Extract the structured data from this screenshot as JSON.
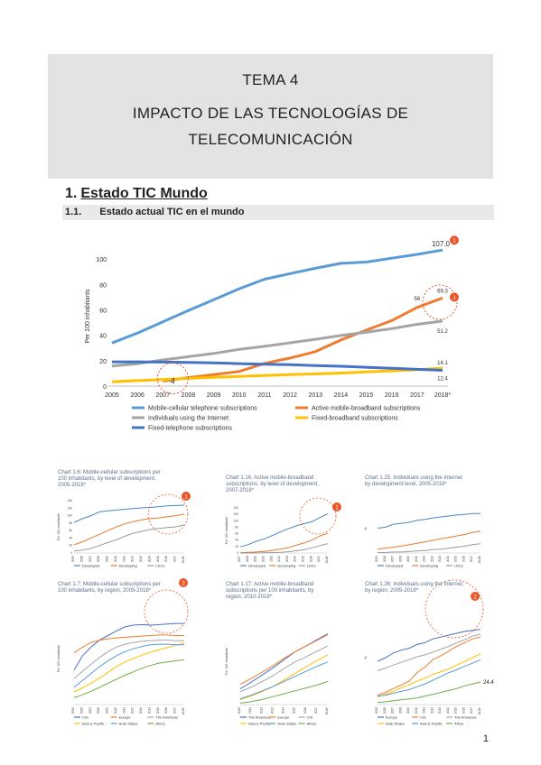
{
  "header": {
    "line1": "TEMA 4",
    "line2": "IMPACTO DE LAS TECNOLOGÍAS DE",
    "line3": "TELECOMUNICACIÓN"
  },
  "section": {
    "number": "1.",
    "title": "Estado TIC Mundo"
  },
  "subsection": {
    "number": "1.1.",
    "title": "Estado actual TIC en el mundo"
  },
  "page_number": "1",
  "colors": {
    "mobile": "#5b9bd5",
    "broadband": "#ed7d31",
    "internet": "#a5a5a5",
    "fixed_bb": "#ffc000",
    "fixed_tel": "#4472c4",
    "circle": "#e8572a"
  },
  "chart_data": [
    {
      "type": "line",
      "title": "",
      "ylabel": "Per 100 inhabitants",
      "xlabel": "",
      "ylim": [
        0,
        110
      ],
      "yticks": [
        "0",
        "20",
        "40",
        "60",
        "80",
        "100"
      ],
      "categories": [
        "2005",
        "2006",
        "2007",
        "2008",
        "2009",
        "2010",
        "2011",
        "2012",
        "2013",
        "2014",
        "2015",
        "2016",
        "2017",
        "2018*"
      ],
      "series": [
        {
          "name": "Mobile-cellular telephone subscriptions",
          "color": "#5b9bd5",
          "values": [
            33.9,
            41.7,
            50.6,
            59.4,
            67.9,
            76.6,
            84.1,
            88.5,
            92.7,
            96.6,
            97.6,
            100.6,
            103.6,
            107.0
          ]
        },
        {
          "name": "Active mobile-broadband subscriptions",
          "color": "#ed7d31",
          "values": [
            null,
            null,
            4.0,
            6.7,
            9.1,
            11.5,
            17.9,
            22.1,
            27.1,
            36.3,
            44.0,
            51.5,
            61.9,
            69.3
          ]
        },
        {
          "name": "Individuals using the Internet",
          "color": "#a5a5a5",
          "values": [
            15.8,
            17.6,
            20.6,
            23.1,
            25.7,
            28.9,
            31.3,
            34.1,
            36.8,
            39.8,
            42.4,
            45.2,
            48.6,
            51.2
          ]
        },
        {
          "name": "Fixed-broadband subscriptions",
          "color": "#ffc000",
          "values": [
            3.4,
            4.3,
            5.2,
            6.1,
            6.9,
            7.6,
            8.4,
            9.0,
            9.6,
            10.3,
            11.2,
            12.0,
            13.0,
            14.1
          ]
        },
        {
          "name": "Fixed-telephone subscriptions",
          "color": "#4472c4",
          "values": [
            19.1,
            19.1,
            18.9,
            18.6,
            18.3,
            17.7,
            17.2,
            16.8,
            16.1,
            15.6,
            14.8,
            14.0,
            13.2,
            12.4
          ]
        }
      ],
      "data_labels": [
        "107.0",
        "69.3",
        "56",
        "51.2",
        "14.1",
        "12.4",
        "4"
      ],
      "annotations": [
        "1",
        "1"
      ],
      "legend_position": "bottom"
    },
    {
      "type": "line",
      "title": "Chart 1.6: Mobile-cellular subscriptions per 100 inhabitants, by level of development, 2005-2018*",
      "ylabel": "Per 100 inhabitants",
      "yticks": [
        "0",
        "20",
        "40",
        "60",
        "80",
        "100",
        "120",
        "140"
      ],
      "categories": [
        "2005",
        "2006",
        "2007",
        "2008",
        "2009",
        "2010",
        "2011",
        "2012",
        "2013",
        "2014",
        "2015",
        "2016",
        "2017",
        "2018*"
      ],
      "series": [
        {
          "name": "Developed",
          "values": [
            82,
            92,
            100,
            110,
            113,
            115,
            117,
            119,
            121,
            122,
            124,
            126,
            127,
            128
          ]
        },
        {
          "name": "Developing",
          "values": [
            22,
            30,
            40,
            50,
            60,
            70,
            78,
            84,
            89,
            92,
            94,
            97,
            100,
            104
          ]
        },
        {
          "name": "LDCs",
          "values": [
            5,
            8,
            12,
            20,
            28,
            35,
            45,
            53,
            58,
            63,
            66,
            68,
            70,
            75
          ]
        }
      ],
      "annotation": "1"
    },
    {
      "type": "line",
      "title": "Chart 1.16: Active mobile-broadband subscriptions, by level of development, 2007-2018*",
      "ylabel": "Per 100 inhabitants",
      "yticks": [
        "0",
        "20",
        "40",
        "60",
        "80",
        "100",
        "120",
        "140"
      ],
      "categories": [
        "2007",
        "2008",
        "2009",
        "2010",
        "2011",
        "2012",
        "2013",
        "2014",
        "2015",
        "2016",
        "2017",
        "2018*"
      ],
      "series": [
        {
          "name": "Developed",
          "values": [
            19,
            26,
            36,
            44,
            54,
            65,
            75,
            84,
            91,
            97,
            110,
            122
          ]
        },
        {
          "name": "Developing",
          "values": [
            1,
            2,
            3,
            5,
            8,
            12,
            16,
            24,
            31,
            40,
            53,
            61
          ]
        },
        {
          "name": "LDCs",
          "values": [
            0,
            0,
            0,
            1,
            1,
            2,
            4,
            7,
            10,
            16,
            23,
            29
          ]
        }
      ],
      "annotation": "1"
    },
    {
      "type": "line",
      "title": "Chart 1.25: Individuals using the Internet by development level, 2005-2018*",
      "ylabel": "%",
      "categories": [
        "2005",
        "2006",
        "2007",
        "2008",
        "2009",
        "2010",
        "2011",
        "2012",
        "2013",
        "2014",
        "2015",
        "2016",
        "2017",
        "2018*"
      ],
      "series": [
        {
          "name": "Developed",
          "values": [
            51,
            53,
            59,
            61,
            63,
            67,
            69,
            72,
            74,
            76,
            78,
            79,
            81,
            81
          ]
        },
        {
          "name": "Developing",
          "values": [
            8,
            10,
            12,
            14,
            17,
            20,
            23,
            26,
            29,
            32,
            35,
            38,
            42,
            45
          ]
        },
        {
          "name": "LDCs",
          "values": [
            1,
            1,
            2,
            2,
            3,
            4,
            5,
            7,
            8,
            10,
            12,
            14,
            17,
            19
          ]
        }
      ]
    },
    {
      "type": "line",
      "title": "Chart 1.7: Mobile-cellular subscriptions per 100 inhabitants, by region, 2005-2018*",
      "ylabel": "Per 100 inhabitants",
      "categories": [
        "2005",
        "2006",
        "2007",
        "2008",
        "2009",
        "2010",
        "2011",
        "2012",
        "2013",
        "2014",
        "2015",
        "2016",
        "2017",
        "2018*"
      ],
      "series": [
        {
          "name": "CIS",
          "values": [
            60,
            85,
            100,
            112,
            120,
            128,
            135,
            138,
            139,
            138,
            139,
            140,
            141,
            141
          ]
        },
        {
          "name": "Europe",
          "values": [
            90,
            100,
            108,
            112,
            114,
            116,
            117,
            118,
            119,
            120,
            121,
            121,
            120,
            120
          ]
        },
        {
          "name": "The Americas",
          "values": [
            45,
            58,
            70,
            82,
            92,
            100,
            105,
            108,
            110,
            111,
            112,
            112,
            111,
            111
          ]
        },
        {
          "name": "Asia & Pacific",
          "values": [
            22,
            29,
            37,
            46,
            56,
            66,
            74,
            80,
            86,
            91,
            95,
            99,
            103,
            107
          ]
        },
        {
          "name": "Arab States",
          "values": [
            30,
            42,
            54,
            66,
            76,
            85,
            92,
            97,
            101,
            104,
            105,
            105,
            104,
            104
          ]
        },
        {
          "name": "Africa",
          "values": [
            12,
            17,
            23,
            30,
            37,
            44,
            51,
            57,
            63,
            68,
            72,
            74,
            76,
            78
          ]
        }
      ],
      "annotation": "2"
    },
    {
      "type": "line",
      "title": "Chart 1.17: Active mobile-broadband subscriptions per 100 inhabitants, by region, 2010-2018*",
      "ylabel": "Per 100 inhabitants",
      "categories": [
        "2010",
        "2011",
        "2012",
        "2013",
        "2014",
        "2015",
        "2016",
        "2017",
        "2018*"
      ],
      "series": [
        {
          "name": "The Americas",
          "values": [
            22,
            31,
            41,
            51,
            62,
            73,
            81,
            90,
            98
          ]
        },
        {
          "name": "Europe",
          "values": [
            28,
            36,
            45,
            54,
            64,
            73,
            81,
            89,
            97
          ]
        },
        {
          "name": "CIS",
          "values": [
            18,
            24,
            32,
            40,
            50,
            59,
            66,
            74,
            81
          ]
        },
        {
          "name": "Asia & Pacific",
          "values": [
            7,
            12,
            18,
            25,
            34,
            43,
            52,
            61,
            69
          ]
        },
        {
          "name": "Arab States",
          "values": [
            8,
            13,
            19,
            25,
            32,
            39,
            46,
            53,
            59
          ]
        },
        {
          "name": "Africa",
          "values": [
            2,
            4,
            7,
            11,
            15,
            19,
            23,
            27,
            32
          ]
        }
      ]
    },
    {
      "type": "line",
      "title": "Chart 1.26: Individuals using the Internet, by region, 2005-2018*",
      "ylabel": "%",
      "categories": [
        "2005",
        "2006",
        "2007",
        "2008",
        "2009",
        "2010",
        "2011",
        "2012",
        "2013",
        "2014",
        "2015",
        "2016",
        "2017",
        "2018*"
      ],
      "series": [
        {
          "name": "Europe",
          "values": [
            46,
            50,
            55,
            58,
            60,
            64,
            66,
            70,
            72,
            74,
            76,
            78,
            79,
            80
          ]
        },
        {
          "name": "CIS",
          "values": [
            10,
            13,
            17,
            21,
            25,
            34,
            40,
            48,
            52,
            57,
            62,
            66,
            70,
            72
          ]
        },
        {
          "name": "The Americas",
          "values": [
            36,
            39,
            42,
            45,
            48,
            51,
            53,
            56,
            59,
            62,
            66,
            69,
            73,
            75
          ]
        },
        {
          "name": "Arab States",
          "values": [
            8,
            11,
            14,
            18,
            21,
            25,
            28,
            32,
            35,
            38,
            42,
            46,
            50,
            54
          ]
        },
        {
          "name": "Asia & Pacific",
          "values": [
            9,
            10,
            12,
            14,
            16,
            19,
            22,
            26,
            30,
            34,
            37,
            41,
            44,
            48
          ]
        },
        {
          "name": "Africa",
          "values": [
            2,
            3,
            4,
            5,
            6,
            7,
            9,
            11,
            13,
            15,
            17,
            20,
            22,
            24
          ]
        }
      ],
      "data_labels": [
        "24.4"
      ],
      "annotation": "2"
    }
  ]
}
